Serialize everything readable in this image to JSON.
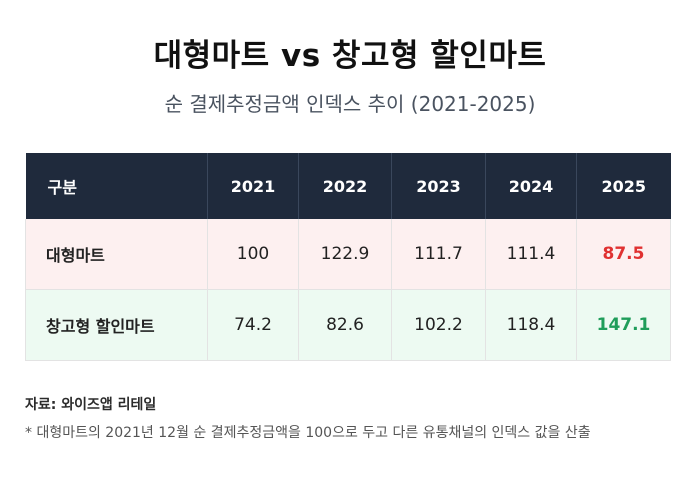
{
  "title": "대형마트 vs 창고형 할인마트",
  "subtitle": "순 결제추정금액 인덱스 추이 (2021-2025)",
  "table": {
    "header_label": "구분",
    "years": [
      "2021",
      "2022",
      "2023",
      "2024",
      "2025"
    ]
  },
  "chart_data": {
    "type": "table",
    "categories": [
      "2021",
      "2022",
      "2023",
      "2024",
      "2025"
    ],
    "series": [
      {
        "name": "대형마트",
        "values": [
          "100",
          "122.9",
          "111.7",
          "111.4",
          "87.5"
        ],
        "highlight_color": "#e03131"
      },
      {
        "name": "창고형 할인마트",
        "values": [
          "74.2",
          "82.6",
          "102.2",
          "118.4",
          "147.1"
        ],
        "highlight_color": "#1f9d5a"
      }
    ]
  },
  "source": "자료: 와이즈앱 리테일",
  "note": "* 대형마트의 2021년 12월 순 결제추정금액을 100으로 두고 다른 유통채널의 인덱스 값을 산출",
  "colors": {
    "header_bg": "#1f2a3c",
    "row1_bg": "#fdf0f0",
    "row2_bg": "#edfaf2"
  }
}
